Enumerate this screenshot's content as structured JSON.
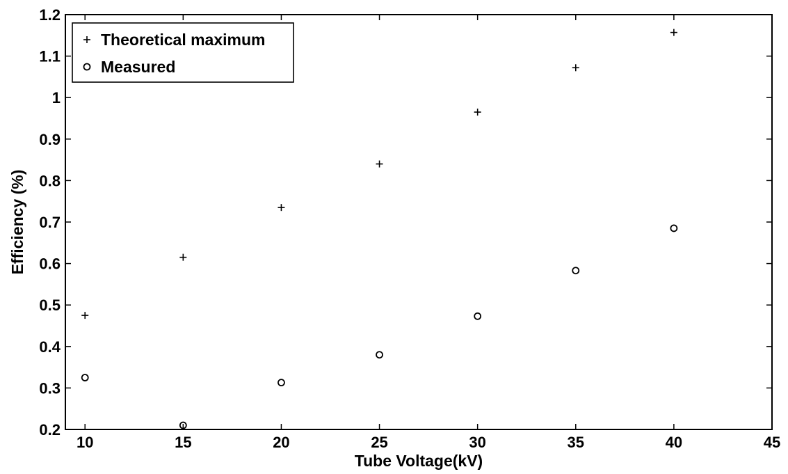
{
  "chart_data": {
    "type": "scatter",
    "title": "",
    "xlabel": "Tube Voltage(kV)",
    "ylabel": "Efficiency (%)",
    "xlim": [
      9,
      45
    ],
    "ylim": [
      0.2,
      1.2
    ],
    "xticks": [
      10,
      15,
      20,
      25,
      30,
      35,
      40,
      45
    ],
    "xtick_labels": [
      "10",
      "15",
      "20",
      "25",
      "30",
      "35",
      "40",
      "45"
    ],
    "yticks": [
      0.2,
      0.3,
      0.4,
      0.5,
      0.6,
      0.7,
      0.8,
      0.9,
      1.0,
      1.1,
      1.2
    ],
    "ytick_labels": [
      "0.2",
      "0.3",
      "0.4",
      "0.5",
      "0.6",
      "0.7",
      "0.8",
      "0.9",
      "1",
      "1.1",
      "1.2"
    ],
    "grid": false,
    "legend_position": "top-left",
    "series": [
      {
        "name": "Theoretical maximum",
        "marker": "plus",
        "x": [
          10,
          15,
          20,
          25,
          30,
          35,
          40
        ],
        "y": [
          0.475,
          0.615,
          0.735,
          0.84,
          0.965,
          1.072,
          1.157
        ]
      },
      {
        "name": "Measured",
        "marker": "circle",
        "x": [
          10,
          15,
          20,
          25,
          30,
          35,
          40
        ],
        "y": [
          0.325,
          0.21,
          0.313,
          0.38,
          0.473,
          0.583,
          0.685
        ]
      }
    ]
  }
}
